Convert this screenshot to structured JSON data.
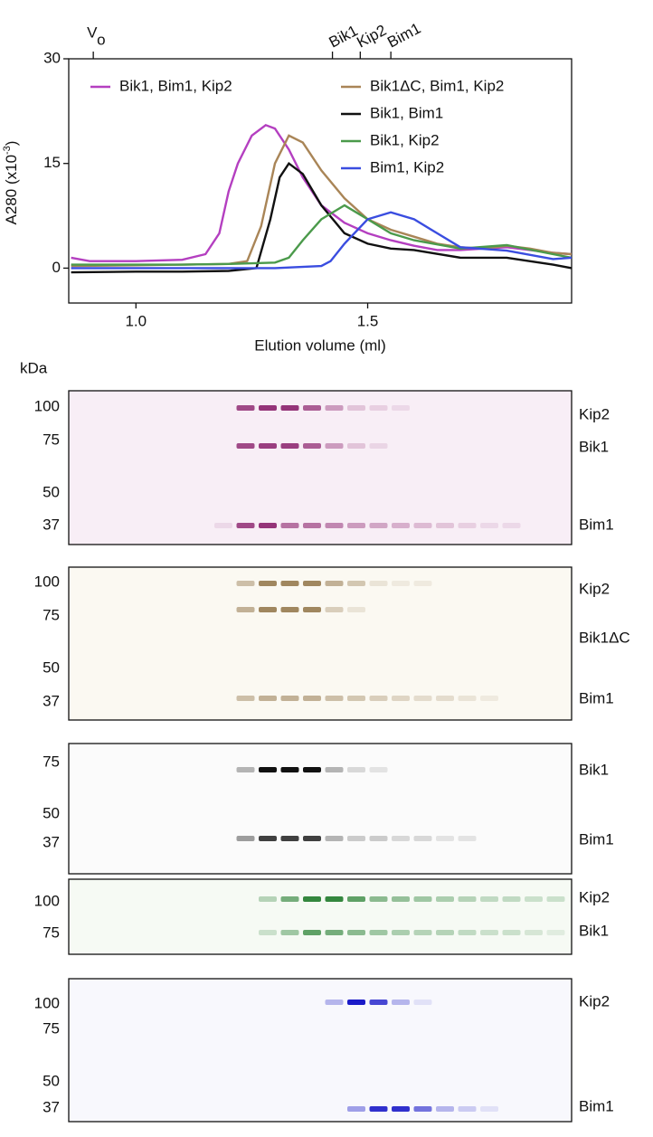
{
  "chart_data": {
    "type": "line",
    "y_label": "A280 (x10",
    "y_label_exp": "-3",
    "y_label_end": ")",
    "x_label": "Elution volume (ml)",
    "xlim": [
      0.855,
      1.94
    ],
    "ylim": [
      -5,
      30
    ],
    "xticks": [
      {
        "value": 1,
        "label": "1.0"
      },
      1.5
    ],
    "yticks": [
      0,
      15,
      30
    ],
    "markers": [
      {
        "label": "V",
        "sub": "o",
        "x": 0.908
      },
      {
        "label": "Bik1",
        "x": 1.424
      },
      {
        "label": "Kip2",
        "x": 1.484
      },
      {
        "label": "Bim1",
        "x": 1.55
      }
    ],
    "legend": "top",
    "series": [
      {
        "name": "Bik1, Bim1, Kip2",
        "color": "#b43fc0",
        "x": [
          0.86,
          0.9,
          1.0,
          1.1,
          1.15,
          1.18,
          1.2,
          1.22,
          1.25,
          1.28,
          1.3,
          1.33,
          1.36,
          1.4,
          1.45,
          1.5,
          1.55,
          1.6,
          1.65,
          1.7,
          1.75,
          1.8,
          1.85,
          1.9,
          1.94
        ],
        "values": [
          1.5,
          1.0,
          1.0,
          1.2,
          2,
          5,
          11,
          15,
          19,
          20.5,
          20,
          17,
          13,
          9,
          6.5,
          5,
          4,
          3.2,
          2.6,
          2.6,
          2.8,
          3,
          2.6,
          2.2,
          2
        ]
      },
      {
        "name": "Bik1ΔC, Bim1, Kip2",
        "color": "#a98557",
        "x": [
          0.86,
          1.0,
          1.1,
          1.2,
          1.24,
          1.27,
          1.3,
          1.33,
          1.36,
          1.4,
          1.45,
          1.5,
          1.55,
          1.6,
          1.65,
          1.7,
          1.75,
          1.8,
          1.85,
          1.9,
          1.94
        ],
        "values": [
          0.3,
          0.4,
          0.5,
          0.6,
          1,
          6,
          15,
          19,
          18,
          14,
          10,
          7,
          5.5,
          4.5,
          3.5,
          3,
          2.8,
          3.2,
          2.8,
          2.2,
          2
        ]
      },
      {
        "name": "Bik1, Bim1",
        "color": "#111111",
        "x": [
          0.86,
          1.0,
          1.1,
          1.2,
          1.26,
          1.29,
          1.31,
          1.33,
          1.36,
          1.4,
          1.45,
          1.5,
          1.55,
          1.6,
          1.7,
          1.8,
          1.9,
          1.94
        ],
        "values": [
          -0.6,
          -0.5,
          -0.5,
          -0.4,
          0,
          7,
          13,
          15,
          13.5,
          9,
          5,
          3.5,
          2.8,
          2.6,
          1.5,
          1.5,
          0.5,
          0
        ]
      },
      {
        "name": "Bik1, Kip2",
        "color": "#4b9a4b",
        "x": [
          0.86,
          1.0,
          1.1,
          1.2,
          1.3,
          1.33,
          1.36,
          1.4,
          1.45,
          1.5,
          1.55,
          1.6,
          1.7,
          1.8,
          1.9,
          1.94
        ],
        "values": [
          0.5,
          0.5,
          0.5,
          0.6,
          0.8,
          1.5,
          4,
          7,
          9,
          7,
          5,
          4,
          2.8,
          3.3,
          2,
          1.5
        ]
      },
      {
        "name": "Bim1, Kip2",
        "color": "#3a4de0",
        "x": [
          0.86,
          1.0,
          1.1,
          1.2,
          1.3,
          1.4,
          1.42,
          1.45,
          1.5,
          1.55,
          1.6,
          1.65,
          1.7,
          1.8,
          1.9,
          1.94
        ],
        "values": [
          0,
          0,
          0,
          0,
          0,
          0.3,
          1,
          3.5,
          7,
          8,
          7,
          5,
          3,
          2.5,
          1.3,
          1.5
        ]
      }
    ]
  },
  "gels": {
    "unit": "kDa",
    "panels": [
      {
        "markers": [
          "100",
          "75",
          "50",
          "37"
        ],
        "proteins": [
          "Kip2",
          "Bik1",
          "Bim1"
        ]
      },
      {
        "markers": [
          "100",
          "75",
          "50",
          "37"
        ],
        "proteins": [
          "Kip2",
          "Bik1ΔC",
          "Bim1"
        ]
      },
      {
        "markers": [
          "75",
          "50",
          "37"
        ],
        "proteins": [
          "Bik1",
          "Bim1"
        ]
      },
      {
        "markers": [
          "100",
          "75"
        ],
        "proteins": [
          "Kip2",
          "Bik1"
        ]
      },
      {
        "markers": [
          "100",
          "75",
          "50",
          "37"
        ],
        "proteins": [
          "Kip2",
          "Bim1"
        ]
      }
    ]
  }
}
